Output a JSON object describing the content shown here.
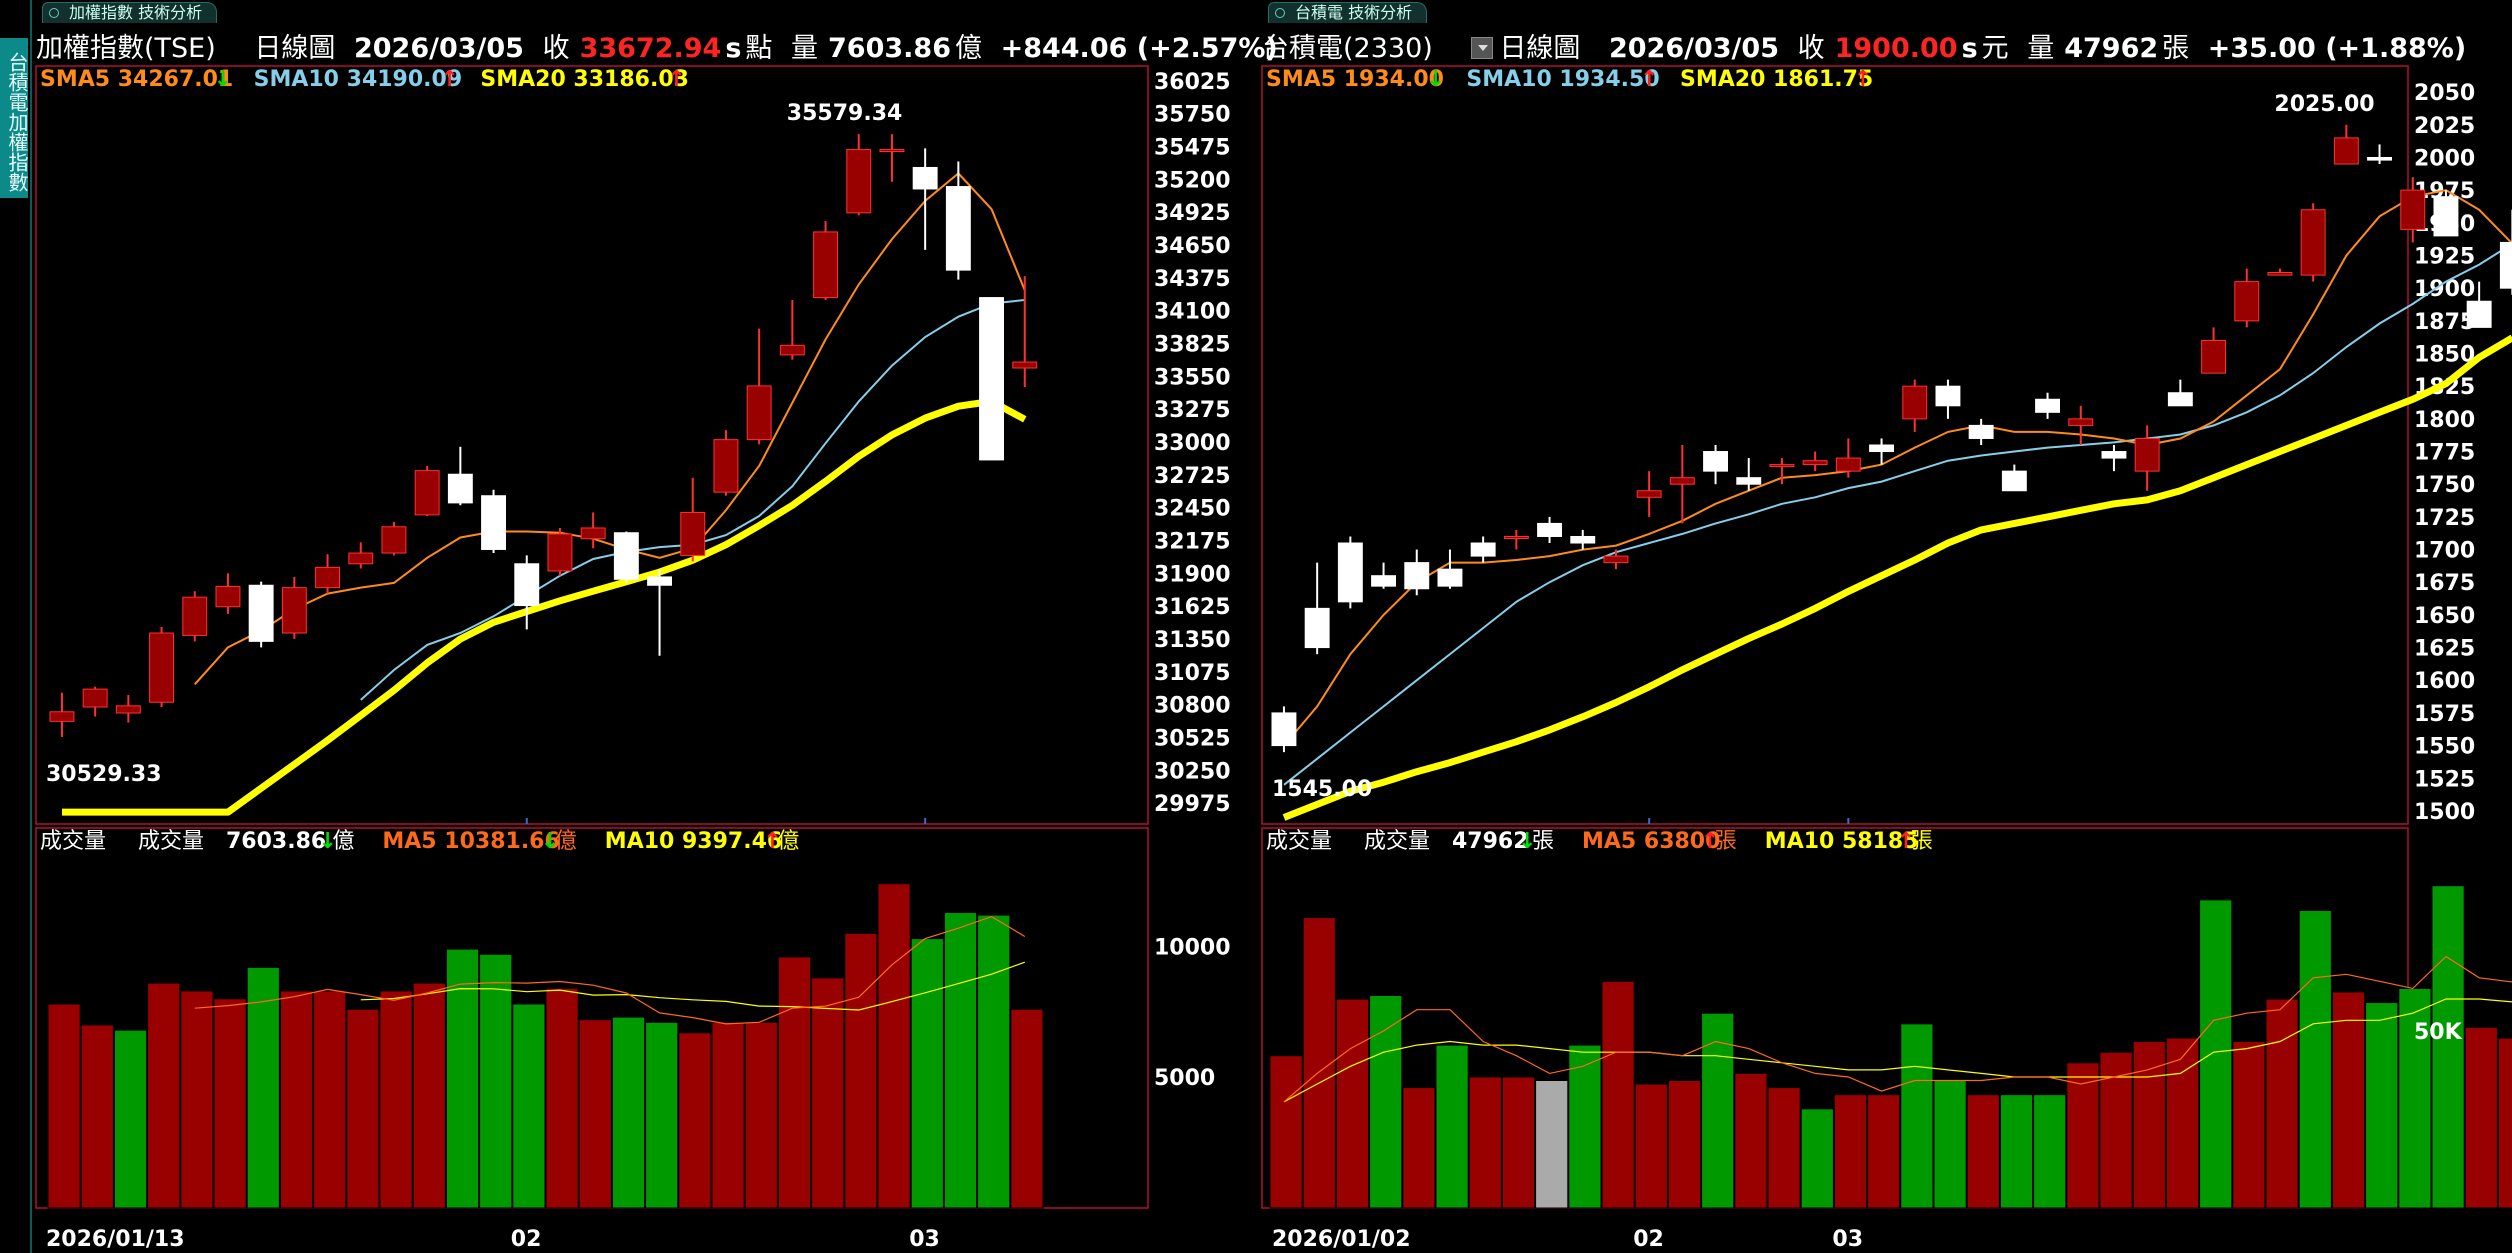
{
  "side_tab": {
    "label": "台積電加權指數"
  },
  "left": {
    "tab_label": "加權指數 技術分析",
    "header": {
      "name": "加權指數(TSE)",
      "period": "日線圖",
      "date": "2026/03/05",
      "close_label": "收",
      "close": "33672.94",
      "s": "s",
      "unit": "點",
      "vol_label": "量",
      "volume": "7603.86",
      "vol_unit": "億",
      "change": "+844.06 (+2.57%)"
    },
    "sma": {
      "sma5_label": "SMA5",
      "sma5": "34267.01",
      "sma5_dir": "down",
      "sma10_label": "SMA10",
      "sma10": "34190.09",
      "sma10_dir": "up",
      "sma20_label": "SMA20",
      "sma20": "33186.03",
      "sma20_dir": "up"
    },
    "vol_header": {
      "title": "成交量",
      "vol_label": "成交量",
      "vol": "7603.86",
      "vol_dir": "down",
      "vol_unit": "億",
      "ma5_label": "MA5",
      "ma5": "10381.66",
      "ma5_dir": "down",
      "ma5_unit": "億",
      "ma10_label": "MA10",
      "ma10": "9397.46",
      "ma10_dir": "up",
      "ma10_unit": "億"
    },
    "annotations": {
      "high": "35579.34",
      "low": "30529.33"
    },
    "x_labels": [
      "2026/01/13",
      "02",
      "03"
    ],
    "price_ticks": [
      36025,
      35750,
      35475,
      35200,
      34925,
      34650,
      34375,
      34100,
      33825,
      33550,
      33275,
      33000,
      32725,
      32450,
      32175,
      31900,
      31625,
      31350,
      31075,
      30800,
      30525,
      30250,
      29975
    ],
    "vol_ticks": [
      {
        "label": "10000",
        "value": 10000
      },
      {
        "label": "5000",
        "value": 5000
      }
    ]
  },
  "right": {
    "tab_label": "台積電 技術分析",
    "header": {
      "name": "台積電(2330)",
      "period": "日線圖",
      "date": "2026/03/05",
      "close_label": "收",
      "close": "1900.00",
      "s": "s",
      "unit": "元",
      "vol_label": "量",
      "volume": "47962",
      "vol_unit": "張",
      "change": "+35.00 (+1.88%)"
    },
    "sma": {
      "sma5_label": "SMA5",
      "sma5": "1934.00",
      "sma5_dir": "down",
      "sma10_label": "SMA10",
      "sma10": "1934.50",
      "sma10_dir": "up",
      "sma20_label": "SMA20",
      "sma20": "1861.75",
      "sma20_dir": "up"
    },
    "vol_header": {
      "title": "成交量",
      "vol_label": "成交量",
      "vol": "47962",
      "vol_dir": "down",
      "vol_unit": "張",
      "ma5_label": "MA5",
      "ma5": "63800",
      "ma5_dir": "up",
      "ma5_unit": "張",
      "ma10_label": "MA10",
      "ma10": "58185",
      "ma10_dir": "up",
      "ma10_unit": "張"
    },
    "annotations": {
      "high": "2025.00",
      "low": "1545.00"
    },
    "x_labels": [
      "2026/01/02",
      "02",
      "03"
    ],
    "price_ticks": [
      2050,
      2025,
      2000,
      1975,
      1950,
      1925,
      1900,
      1875,
      1850,
      1825,
      1800,
      1775,
      1750,
      1725,
      1700,
      1675,
      1650,
      1625,
      1600,
      1575,
      1550,
      1525,
      1500
    ],
    "vol_ticks": [
      {
        "label": "50K",
        "value": 50000
      }
    ]
  },
  "colors": {
    "up": "#990000",
    "up_border": "#ff3030",
    "down_fill": "#ffffff",
    "vol_green": "#009900",
    "vol_gray": "#aaaaaa",
    "sma5": "#ff8c1a",
    "sma10": "#87ceeb",
    "sma20": "#ffff00",
    "frame": "#b01030"
  },
  "chart_data": [
    {
      "type": "candlestick",
      "title": "加權指數(TSE)",
      "x_start": "2026/01/13",
      "ylim": [
        29800,
        36150
      ],
      "candles": [
        {
          "o": 30660,
          "h": 30900,
          "l": 30529,
          "c": 30740
        },
        {
          "o": 30780,
          "h": 30950,
          "l": 30700,
          "c": 30930
        },
        {
          "o": 30730,
          "h": 30880,
          "l": 30650,
          "c": 30790
        },
        {
          "o": 30820,
          "h": 31450,
          "l": 30780,
          "c": 31400
        },
        {
          "o": 31380,
          "h": 31750,
          "l": 31330,
          "c": 31700
        },
        {
          "o": 31620,
          "h": 31900,
          "l": 31560,
          "c": 31790
        },
        {
          "o": 31800,
          "h": 31830,
          "l": 31280,
          "c": 31330
        },
        {
          "o": 31400,
          "h": 31870,
          "l": 31350,
          "c": 31780
        },
        {
          "o": 31780,
          "h": 32060,
          "l": 31730,
          "c": 31950
        },
        {
          "o": 31980,
          "h": 32160,
          "l": 31940,
          "c": 32070
        },
        {
          "o": 32070,
          "h": 32330,
          "l": 32050,
          "c": 32290
        },
        {
          "o": 32390,
          "h": 32800,
          "l": 32380,
          "c": 32760
        },
        {
          "o": 32730,
          "h": 32960,
          "l": 32470,
          "c": 32490
        },
        {
          "o": 32550,
          "h": 32600,
          "l": 32070,
          "c": 32100
        },
        {
          "o": 31980,
          "h": 32050,
          "l": 31430,
          "c": 31630
        },
        {
          "o": 31920,
          "h": 32280,
          "l": 31880,
          "c": 32230
        },
        {
          "o": 32190,
          "h": 32410,
          "l": 32110,
          "c": 32280
        },
        {
          "o": 32240,
          "h": 32250,
          "l": 31820,
          "c": 31850
        },
        {
          "o": 31870,
          "h": 31930,
          "l": 31210,
          "c": 31800
        },
        {
          "o": 32050,
          "h": 32700,
          "l": 32000,
          "c": 32410
        },
        {
          "o": 32580,
          "h": 33100,
          "l": 32550,
          "c": 33020
        },
        {
          "o": 33020,
          "h": 33950,
          "l": 32980,
          "c": 33470
        },
        {
          "o": 33730,
          "h": 34190,
          "l": 33690,
          "c": 33810
        },
        {
          "o": 34210,
          "h": 34850,
          "l": 34190,
          "c": 34760
        },
        {
          "o": 34920,
          "h": 35579,
          "l": 34900,
          "c": 35450
        },
        {
          "o": 35440,
          "h": 35579,
          "l": 35180,
          "c": 35450
        },
        {
          "o": 35300,
          "h": 35460,
          "l": 34610,
          "c": 35120
        },
        {
          "o": 35140,
          "h": 35350,
          "l": 34360,
          "c": 34440
        },
        {
          "o": 34210,
          "h": 34210,
          "l": 32850,
          "c": 32850
        },
        {
          "o": 33620,
          "h": 34390,
          "l": 33460,
          "c": 33670
        }
      ],
      "sma5": [
        null,
        null,
        null,
        null,
        30970,
        31280,
        31420,
        31600,
        31730,
        31780,
        31820,
        32030,
        32200,
        32250,
        32250,
        32240,
        32190,
        32100,
        32030,
        32110,
        32430,
        32800,
        33330,
        33860,
        34320,
        34700,
        35020,
        35250,
        34950,
        34270
      ],
      "sma10": [
        null,
        null,
        null,
        null,
        null,
        null,
        null,
        null,
        null,
        30840,
        31090,
        31300,
        31400,
        31540,
        31710,
        31880,
        32020,
        32080,
        32120,
        32140,
        32220,
        32380,
        32630,
        32990,
        33340,
        33640,
        33880,
        34050,
        34160,
        34190
      ],
      "sma20": [
        29900,
        29900,
        29900,
        29900,
        29900,
        29900,
        30100,
        30300,
        30500,
        30710,
        30920,
        31150,
        31350,
        31490,
        31580,
        31670,
        31750,
        31830,
        31910,
        32010,
        32140,
        32300,
        32470,
        32670,
        32880,
        33060,
        33200,
        33300,
        33340,
        33190
      ],
      "volume": [
        7800,
        7000,
        6800,
        8600,
        8300,
        8000,
        9200,
        8300,
        8300,
        7600,
        8300,
        8600,
        9900,
        9700,
        7800,
        8400,
        7200,
        7300,
        7100,
        6700,
        7100,
        7100,
        9600,
        8800,
        10500,
        12400,
        10300,
        11300,
        11200,
        7600
      ],
      "vol_ma5": [
        null,
        null,
        null,
        null,
        7640,
        7740,
        7880,
        8080,
        8360,
        8160,
        7940,
        8220,
        8560,
        8620,
        8600,
        8660,
        8520,
        8220,
        7460,
        7280,
        7040,
        7100,
        7640,
        7720,
        8060,
        9300,
        10300,
        10700,
        11140,
        10380
      ],
      "vol_ma10": [
        null,
        null,
        null,
        null,
        null,
        null,
        null,
        null,
        null,
        7960,
        8010,
        8190,
        8390,
        8380,
        8270,
        8330,
        8140,
        8160,
        8040,
        7960,
        7900,
        7720,
        7700,
        7630,
        7570,
        7890,
        8230,
        8580,
        8940,
        9400
      ],
      "vol_up": [
        true,
        true,
        false,
        true,
        true,
        true,
        false,
        true,
        true,
        true,
        true,
        true,
        false,
        false,
        false,
        true,
        true,
        false,
        false,
        true,
        true,
        true,
        true,
        true,
        true,
        true,
        false,
        false,
        false,
        true
      ]
    },
    {
      "type": "candlestick",
      "title": "台積電(2330)",
      "x_start": "2026/01/02",
      "ylim": [
        1490,
        2070
      ],
      "candles": [
        {
          "o": 1575,
          "h": 1580,
          "l": 1545,
          "c": 1550
        },
        {
          "o": 1655,
          "h": 1690,
          "l": 1620,
          "c": 1625
        },
        {
          "o": 1705,
          "h": 1710,
          "l": 1655,
          "c": 1660
        },
        {
          "o": 1680,
          "h": 1690,
          "l": 1670,
          "c": 1672
        },
        {
          "o": 1690,
          "h": 1700,
          "l": 1665,
          "c": 1670
        },
        {
          "o": 1685,
          "h": 1700,
          "l": 1670,
          "c": 1672
        },
        {
          "o": 1705,
          "h": 1710,
          "l": 1690,
          "c": 1695
        },
        {
          "o": 1710,
          "h": 1715,
          "l": 1700,
          "c": 1710
        },
        {
          "o": 1720,
          "h": 1725,
          "l": 1705,
          "c": 1710
        },
        {
          "o": 1710,
          "h": 1715,
          "l": 1700,
          "c": 1705
        },
        {
          "o": 1690,
          "h": 1700,
          "l": 1685,
          "c": 1695
        },
        {
          "o": 1740,
          "h": 1760,
          "l": 1725,
          "c": 1745
        },
        {
          "o": 1750,
          "h": 1780,
          "l": 1720,
          "c": 1755
        },
        {
          "o": 1775,
          "h": 1780,
          "l": 1750,
          "c": 1760
        },
        {
          "o": 1755,
          "h": 1770,
          "l": 1745,
          "c": 1750
        },
        {
          "o": 1765,
          "h": 1770,
          "l": 1750,
          "c": 1765
        },
        {
          "o": 1765,
          "h": 1775,
          "l": 1760,
          "c": 1768
        },
        {
          "o": 1760,
          "h": 1785,
          "l": 1755,
          "c": 1770
        },
        {
          "o": 1780,
          "h": 1785,
          "l": 1765,
          "c": 1775
        },
        {
          "o": 1800,
          "h": 1830,
          "l": 1790,
          "c": 1825
        },
        {
          "o": 1825,
          "h": 1830,
          "l": 1800,
          "c": 1810
        },
        {
          "o": 1795,
          "h": 1800,
          "l": 1780,
          "c": 1785
        },
        {
          "o": 1760,
          "h": 1765,
          "l": 1745,
          "c": 1745
        },
        {
          "o": 1815,
          "h": 1820,
          "l": 1800,
          "c": 1805
        },
        {
          "o": 1795,
          "h": 1810,
          "l": 1780,
          "c": 1800
        },
        {
          "o": 1775,
          "h": 1780,
          "l": 1760,
          "c": 1770
        },
        {
          "o": 1760,
          "h": 1795,
          "l": 1745,
          "c": 1785
        },
        {
          "o": 1820,
          "h": 1830,
          "l": 1810,
          "c": 1810
        },
        {
          "o": 1835,
          "h": 1870,
          "l": 1835,
          "c": 1860
        },
        {
          "o": 1875,
          "h": 1915,
          "l": 1870,
          "c": 1905
        },
        {
          "o": 1910,
          "h": 1915,
          "l": 1910,
          "c": 1912
        },
        {
          "o": 1910,
          "h": 1965,
          "l": 1905,
          "c": 1960
        },
        {
          "o": 1995,
          "h": 2025,
          "l": 1995,
          "c": 2015
        },
        {
          "o": 2000,
          "h": 2010,
          "l": 1995,
          "c": 1998
        },
        {
          "o": 1945,
          "h": 1985,
          "l": 1935,
          "c": 1975
        },
        {
          "o": 1970,
          "h": 1975,
          "l": 1940,
          "c": 1940
        },
        {
          "o": 1890,
          "h": 1905,
          "l": 1870,
          "c": 1870
        },
        {
          "o": 1935,
          "h": 1960,
          "l": 1895,
          "c": 1900
        }
      ],
      "sma5": [
        1550,
        1580,
        1620,
        1650,
        1675,
        1690,
        1690,
        1692,
        1695,
        1700,
        1703,
        1712,
        1722,
        1735,
        1745,
        1755,
        1757,
        1760,
        1765,
        1778,
        1790,
        1795,
        1790,
        1790,
        1788,
        1785,
        1780,
        1785,
        1798,
        1818,
        1838,
        1880,
        1925,
        1955,
        1970,
        1975,
        1960,
        1934
      ],
      "sma10": [
        1520,
        1540,
        1560,
        1580,
        1600,
        1620,
        1640,
        1660,
        1675,
        1688,
        1698,
        1705,
        1712,
        1720,
        1727,
        1735,
        1740,
        1747,
        1752,
        1760,
        1768,
        1772,
        1775,
        1778,
        1780,
        1782,
        1785,
        1788,
        1795,
        1805,
        1818,
        1835,
        1855,
        1873,
        1888,
        1905,
        1918,
        1934
      ],
      "sma20": [
        1495,
        1505,
        1515,
        1522,
        1530,
        1537,
        1545,
        1553,
        1562,
        1572,
        1583,
        1595,
        1608,
        1620,
        1632,
        1643,
        1655,
        1668,
        1680,
        1692,
        1705,
        1715,
        1720,
        1725,
        1730,
        1735,
        1738,
        1745,
        1755,
        1765,
        1775,
        1785,
        1795,
        1805,
        1815,
        1827,
        1847,
        1862
      ],
      "volume": [
        43000,
        82000,
        59000,
        60000,
        34000,
        46000,
        37000,
        37000,
        36000,
        46000,
        64000,
        35000,
        36000,
        55000,
        38000,
        34000,
        28000,
        32000,
        32000,
        52000,
        36000,
        32000,
        32000,
        32000,
        41000,
        44000,
        47000,
        48000,
        87000,
        47000,
        59000,
        84000,
        61000,
        58000,
        62000,
        91000,
        51000,
        47962
      ],
      "vol_ma5": [
        30000,
        38000,
        45000,
        50000,
        56000,
        56000,
        47000,
        43000,
        38000,
        40000,
        44000,
        44000,
        43000,
        47000,
        45000,
        41000,
        38000,
        37000,
        33000,
        36000,
        36000,
        36000,
        37000,
        37000,
        35000,
        37000,
        39000,
        42000,
        53000,
        55000,
        56000,
        65000,
        66000,
        64000,
        62000,
        71000,
        65000,
        63800
      ],
      "vol_ma10": [
        30000,
        35000,
        40000,
        44000,
        46000,
        47000,
        46000,
        46000,
        45000,
        44000,
        44000,
        44000,
        43000,
        43000,
        42000,
        41000,
        40000,
        39000,
        39000,
        40000,
        39000,
        38000,
        37000,
        37000,
        37000,
        37000,
        37000,
        38000,
        44000,
        45000,
        47000,
        52000,
        53000,
        53000,
        55000,
        59000,
        59000,
        58185
      ],
      "vol_color": [
        "up",
        "up",
        "up",
        "down",
        "up",
        "down",
        "up",
        "up",
        "gray",
        "down",
        "up",
        "up",
        "up",
        "down",
        "up",
        "up",
        "down",
        "up",
        "up",
        "down",
        "down",
        "up",
        "down",
        "down",
        "up",
        "up",
        "up",
        "up",
        "down",
        "up",
        "up",
        "down",
        "up",
        "down",
        "down",
        "down",
        "up",
        "up"
      ]
    }
  ]
}
